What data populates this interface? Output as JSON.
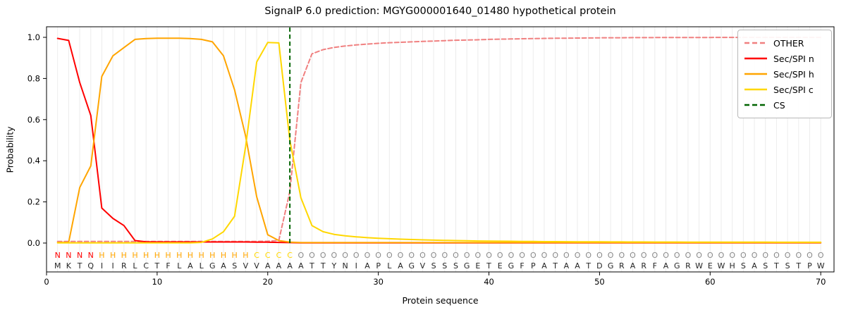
{
  "title": "SignalP 6.0 prediction: MGYG000001640_01480 hypothetical protein",
  "axes": {
    "ylabel": "Probability",
    "xlabel": "Protein sequence",
    "xticks": [
      {
        "label": "0",
        "value": 0
      },
      {
        "label": "10",
        "value": 10
      },
      {
        "label": "20",
        "value": 20
      },
      {
        "label": "30",
        "value": 30
      },
      {
        "label": "40",
        "value": 40
      },
      {
        "label": "50",
        "value": 50
      },
      {
        "label": "60",
        "value": 60
      },
      {
        "label": "70",
        "value": 70
      }
    ],
    "yticks": [
      {
        "label": "0.0",
        "value": 0.0
      },
      {
        "label": "0.2",
        "value": 0.2
      },
      {
        "label": "0.4",
        "value": 0.4
      },
      {
        "label": "0.6",
        "value": 0.6
      },
      {
        "label": "0.8",
        "value": 0.8
      },
      {
        "label": "1.0",
        "value": 1.0
      }
    ]
  },
  "legend": {
    "items": [
      {
        "label": "OTHER",
        "color": "#f08080",
        "dashed": true
      },
      {
        "label": "Sec/SPI n",
        "color": "#ff0000",
        "dashed": false
      },
      {
        "label": "Sec/SPI h",
        "color": "#ffa500",
        "dashed": false
      },
      {
        "label": "Sec/SPI c",
        "color": "#ffd700",
        "dashed": false
      },
      {
        "label": "CS",
        "color": "#006400",
        "dashed": true
      }
    ]
  },
  "chart_data": {
    "type": "line",
    "title": "SignalP 6.0 prediction: MGYG000001640_01480 hypothetical protein",
    "xlabel": "Protein sequence",
    "ylabel": "Probability",
    "xlim": [
      0,
      71.2
    ],
    "ylim": [
      0,
      1.05
    ],
    "grid": "vertical-per-residue",
    "legend_position": "upper right",
    "grid_color": "#ececec",
    "cs_line": {
      "name": "CS",
      "x": 22,
      "color": "#006400"
    },
    "sequence": "MKTQIIRLCTFLALGASVVAAAATTYNIAPLAGVSSSGETEGFPATAATDGRARFAGRWEWHSASTSTPW",
    "regions": "NNNNHHHHHHHHHHHHHHCCCCOOOOOOOOOOOOOOOOOOOOOOOOOOOOOOOOOOOOOOOOOOOOOOOO",
    "region_colors": {
      "N": "#ff0000",
      "H": "#ffa500",
      "C": "#ffd700",
      "O": "#8a8a8a"
    },
    "sequence_color": "#262626",
    "series": [
      {
        "name": "OTHER",
        "color": "#f08080",
        "dashed": true,
        "width": 2,
        "values": [
          0.008,
          0.008,
          0.008,
          0.008,
          0.008,
          0.008,
          0.008,
          0.008,
          0.008,
          0.008,
          0.008,
          0.008,
          0.008,
          0.008,
          0.008,
          0.008,
          0.008,
          0.008,
          0.008,
          0.009,
          0.013,
          0.25,
          0.78,
          0.92,
          0.94,
          0.951,
          0.958,
          0.963,
          0.967,
          0.971,
          0.974,
          0.976,
          0.978,
          0.98,
          0.982,
          0.984,
          0.986,
          0.987,
          0.988,
          0.99,
          0.991,
          0.992,
          0.993,
          0.994,
          0.995,
          0.9955,
          0.996,
          0.9965,
          0.997,
          0.9975,
          0.998,
          0.998,
          0.9985,
          0.9985,
          0.999,
          0.999,
          0.999,
          0.9992,
          0.9993,
          0.9994,
          0.9995,
          0.9995,
          0.9996,
          0.9996,
          0.9997,
          0.9997,
          0.9997,
          0.9998,
          0.9998,
          0.9998
        ]
      },
      {
        "name": "Sec/SPI n",
        "color": "#ff0000",
        "dashed": false,
        "width": 2,
        "values": [
          0.995,
          0.985,
          0.78,
          0.62,
          0.17,
          0.12,
          0.085,
          0.012,
          0.006,
          0.005,
          0.005,
          0.005,
          0.005,
          0.005,
          0.005,
          0.005,
          0.005,
          0.005,
          0.004,
          0.004,
          0.003,
          0.002,
          0.001,
          0.001,
          0.001,
          0.001,
          0.001,
          0.001,
          0.001,
          0.001,
          0.001,
          0.001,
          0.001,
          0.001,
          0.001,
          0.001,
          0.001,
          0.001,
          0.001,
          0.001,
          0.001,
          0.001,
          0.001,
          0.001,
          0.001,
          0.001,
          0.001,
          0.001,
          0.001,
          0.001,
          0.001,
          0.001,
          0.001,
          0.001,
          0.001,
          0.001,
          0.001,
          0.001,
          0.001,
          0.001,
          0.001,
          0.001,
          0.001,
          0.001,
          0.001,
          0.001,
          0.001,
          0.001,
          0.001,
          0.001
        ]
      },
      {
        "name": "Sec/SPI h",
        "color": "#ffa500",
        "dashed": false,
        "width": 2,
        "values": [
          0.002,
          0.003,
          0.27,
          0.375,
          0.81,
          0.91,
          0.95,
          0.99,
          0.994,
          0.996,
          0.996,
          0.996,
          0.994,
          0.99,
          0.978,
          0.91,
          0.745,
          0.52,
          0.225,
          0.04,
          0.012,
          0.004,
          0.002,
          0.002,
          0.002,
          0.002,
          0.002,
          0.002,
          0.002,
          0.002,
          0.002,
          0.002,
          0.002,
          0.002,
          0.002,
          0.002,
          0.002,
          0.002,
          0.002,
          0.002,
          0.002,
          0.002,
          0.002,
          0.002,
          0.002,
          0.002,
          0.002,
          0.002,
          0.002,
          0.002,
          0.002,
          0.002,
          0.002,
          0.002,
          0.002,
          0.002,
          0.002,
          0.002,
          0.002,
          0.002,
          0.002,
          0.002,
          0.002,
          0.002,
          0.002,
          0.002,
          0.002,
          0.002,
          0.002,
          0.002
        ]
      },
      {
        "name": "Sec/SPI c",
        "color": "#ffd700",
        "dashed": false,
        "width": 2,
        "values": [
          0.001,
          0.001,
          0.001,
          0.001,
          0.001,
          0.001,
          0.001,
          0.001,
          0.001,
          0.001,
          0.001,
          0.001,
          0.001,
          0.003,
          0.02,
          0.055,
          0.13,
          0.47,
          0.88,
          0.975,
          0.973,
          0.5,
          0.22,
          0.085,
          0.055,
          0.042,
          0.035,
          0.03,
          0.026,
          0.023,
          0.021,
          0.019,
          0.017,
          0.0155,
          0.014,
          0.013,
          0.012,
          0.011,
          0.01,
          0.0095,
          0.009,
          0.0085,
          0.008,
          0.0075,
          0.007,
          0.0068,
          0.0065,
          0.0062,
          0.006,
          0.0058,
          0.0056,
          0.0054,
          0.0052,
          0.005,
          0.0049,
          0.0048,
          0.0047,
          0.0046,
          0.0045,
          0.0044,
          0.0043,
          0.0042,
          0.0041,
          0.004,
          0.004,
          0.0039,
          0.0039,
          0.0038,
          0.0038,
          0.0038
        ]
      }
    ]
  }
}
